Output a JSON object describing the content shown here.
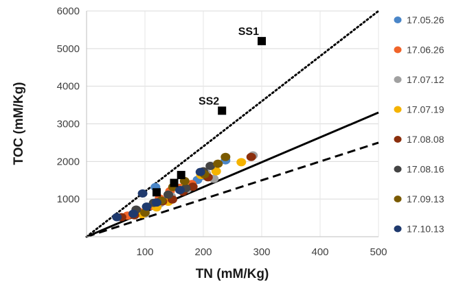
{
  "chart_data": {
    "type": "scatter",
    "xlabel": "TN (mM/Kg)",
    "ylabel": "TOC (mM/Kg)",
    "xlim": [
      0,
      500
    ],
    "ylim": [
      0,
      6000
    ],
    "x_ticks": [
      "100",
      "200",
      "300",
      "400",
      "500"
    ],
    "y_ticks": [
      "1000",
      "2000",
      "3000",
      "4000",
      "5000",
      "6000"
    ],
    "grid": "horizontal",
    "legend_position": "right",
    "reference_lines": [
      {
        "style": "dotted",
        "points": [
          [
            0,
            0
          ],
          [
            500,
            6000
          ]
        ]
      },
      {
        "style": "solid",
        "points": [
          [
            0,
            0
          ],
          [
            500,
            3300
          ]
        ]
      },
      {
        "style": "dashed",
        "points": [
          [
            0,
            0
          ],
          [
            500,
            2500
          ]
        ]
      }
    ],
    "annotations": [
      {
        "label": "SS1",
        "x": 300,
        "y": 5200,
        "marker": "square"
      },
      {
        "label": "SS2",
        "x": 232,
        "y": 3350,
        "marker": "square"
      }
    ],
    "extra_markers": [
      {
        "x": 120,
        "y": 1180,
        "marker": "square"
      },
      {
        "x": 150,
        "y": 1430,
        "marker": "square"
      },
      {
        "x": 162,
        "y": 1640,
        "marker": "square"
      }
    ],
    "series": [
      {
        "name": "17.05.26",
        "color": "#4a86c8",
        "points": [
          [
            85,
            640
          ],
          [
            118,
            1320
          ],
          [
            135,
            960
          ],
          [
            158,
            1300
          ],
          [
            190,
            1510
          ],
          [
            200,
            1620
          ],
          [
            238,
            2030
          ]
        ]
      },
      {
        "name": "17.06.26",
        "color": "#f0642a",
        "points": [
          [
            70,
            560
          ],
          [
            90,
            660
          ],
          [
            112,
            820
          ],
          [
            125,
            1020
          ],
          [
            143,
            1210
          ],
          [
            160,
            1300
          ],
          [
            180,
            1400
          ]
        ]
      },
      {
        "name": "17.07.12",
        "color": "#a0a0a0",
        "points": [
          [
            100,
            610
          ],
          [
            125,
            880
          ],
          [
            145,
            1070
          ],
          [
            172,
            1260
          ],
          [
            205,
            1680
          ],
          [
            218,
            1540
          ],
          [
            285,
            2160
          ]
        ]
      },
      {
        "name": "17.07.19",
        "color": "#f5b300",
        "points": [
          [
            95,
            600
          ],
          [
            120,
            780
          ],
          [
            140,
            930
          ],
          [
            170,
            1310
          ],
          [
            196,
            1640
          ],
          [
            222,
            1740
          ],
          [
            265,
            1980
          ]
        ]
      },
      {
        "name": "17.08.08",
        "color": "#8b2e0c",
        "points": [
          [
            60,
            520
          ],
          [
            82,
            570
          ],
          [
            130,
            940
          ],
          [
            147,
            990
          ],
          [
            165,
            1200
          ],
          [
            182,
            1330
          ],
          [
            208,
            1580
          ],
          [
            282,
            2120
          ]
        ]
      },
      {
        "name": "17.08.16",
        "color": "#444444",
        "points": [
          [
            85,
            720
          ],
          [
            115,
            900
          ],
          [
            140,
            1120
          ],
          [
            170,
            1290
          ],
          [
            200,
            1740
          ],
          [
            212,
            1880
          ]
        ]
      },
      {
        "name": "17.09.13",
        "color": "#7a5a00",
        "points": [
          [
            100,
            640
          ],
          [
            128,
            960
          ],
          [
            148,
            1320
          ],
          [
            168,
            1480
          ],
          [
            202,
            1660
          ],
          [
            225,
            1940
          ],
          [
            238,
            2120
          ]
        ]
      },
      {
        "name": "17.10.13",
        "color": "#1f3a6e",
        "points": [
          [
            52,
            520
          ],
          [
            80,
            610
          ],
          [
            96,
            1150
          ],
          [
            103,
            800
          ],
          [
            120,
            910
          ],
          [
            160,
            1240
          ],
          [
            195,
            1720
          ]
        ]
      }
    ]
  }
}
